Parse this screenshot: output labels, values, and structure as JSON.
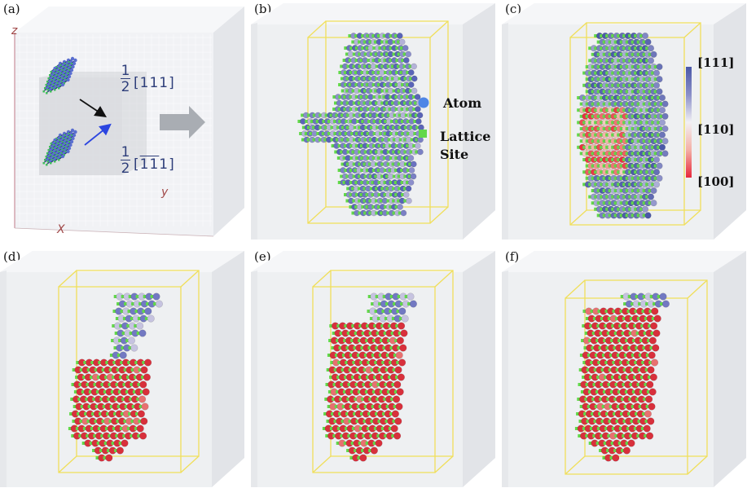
{
  "panels": [
    {
      "label": "(a)"
    },
    {
      "label": "(b)"
    },
    {
      "label": "(c)"
    },
    {
      "label": "(d)"
    },
    {
      "label": "(e)"
    },
    {
      "label": "(f)"
    }
  ],
  "panel_a": {
    "axis_z": "z",
    "axis_y": "y",
    "axis_x": "X",
    "fraction_num": "1",
    "fraction_den": "2",
    "burgers_1": "[111]",
    "burgers_2_open": "[",
    "burgers_2_bar1": "1",
    "burgers_2_bar2": "1",
    "burgers_2_last": "1",
    "burgers_2_close": "]",
    "colors": {
      "arrow_black": "#111111",
      "arrow_blue": "#2b45e0",
      "big_arrow": "#a9adb3"
    }
  },
  "legend": {
    "atom_label": "Atom",
    "site_label_1": "Lattice",
    "site_label_2": "Site",
    "atom_color": "#4f86e6",
    "site_color": "#62d84a"
  },
  "colorbar": {
    "top_label": "[111]",
    "mid_label": "[110]",
    "bottom_label": "[100]",
    "stops": [
      "#4a58a8",
      "#8a8fc8",
      "#f2f0f4",
      "#f4b0a6",
      "#e8283c"
    ]
  }
}
